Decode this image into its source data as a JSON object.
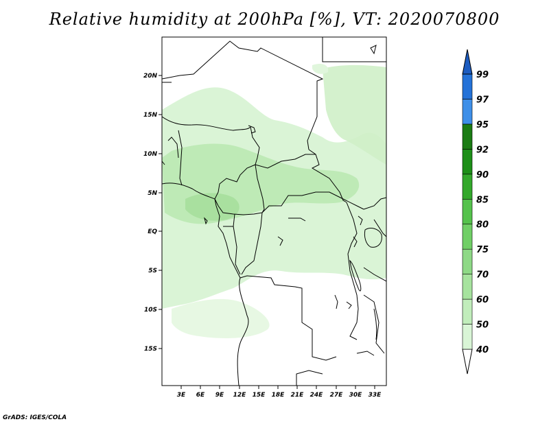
{
  "title": "Relative humidity at 200hPa [%], VT: 2020070800",
  "credit": "GrADS: IGES/COLA",
  "map": {
    "lat_ticks": [
      "20N",
      "15N",
      "10N",
      "5N",
      "EQ",
      "5S",
      "10S",
      "15S"
    ],
    "lon_ticks": [
      "3E",
      "6E",
      "9E",
      "12E",
      "15E",
      "18E",
      "21E",
      "24E",
      "27E",
      "30E",
      "33E"
    ]
  },
  "colorbar": {
    "levels": [
      "40",
      "50",
      "60",
      "70",
      "75",
      "80",
      "85",
      "90",
      "92",
      "95",
      "97",
      "99"
    ],
    "colors": [
      "#f0fcf0",
      "#d9f5d6",
      "#c1edbb",
      "#a6e39e",
      "#8ed986",
      "#70cf66",
      "#55c24c",
      "#33a82b",
      "#1d8f18",
      "#1b7c14",
      "#3e8fe8",
      "#2472d8",
      "#1c5cc0"
    ]
  }
}
